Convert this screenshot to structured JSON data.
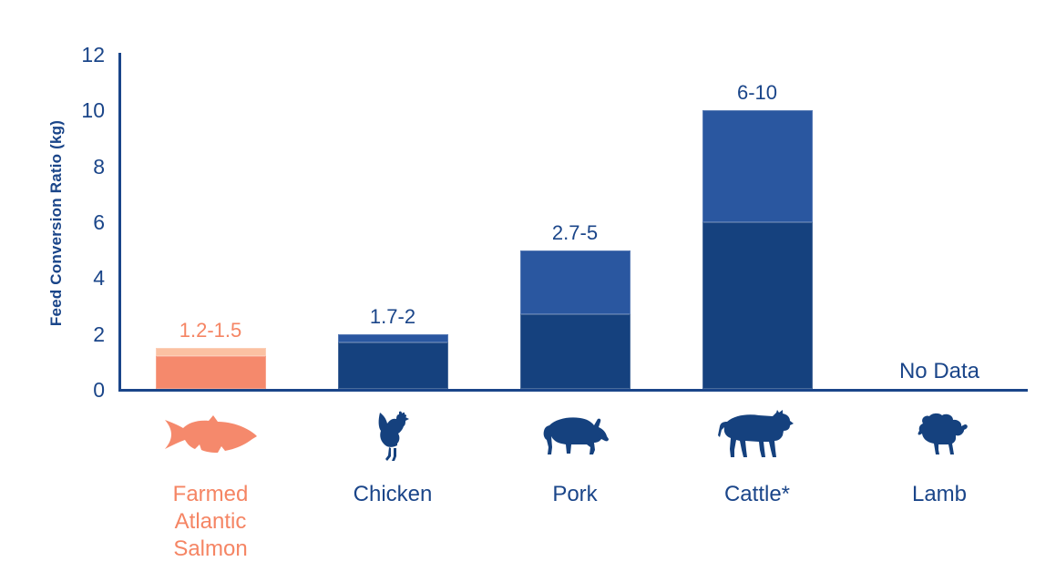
{
  "chart_data": {
    "type": "bar",
    "title": "",
    "ylabel": "Feed Conversion Ratio (kg)",
    "xlabel": "",
    "ylim": [
      0,
      12
    ],
    "yticks": [
      0,
      2,
      4,
      6,
      8,
      10,
      12
    ],
    "grid": false,
    "legend": false,
    "bar_style": "range bars: dark segment from 0 to range_min, light segment from range_min to range_max",
    "categories": [
      {
        "label": "Farmed Atlantic Salmon",
        "label_lines": [
          "Farmed",
          "Atlantic",
          "Salmon"
        ],
        "icon": "salmon-fish-icon",
        "range_min": 1.2,
        "range_max": 1.5,
        "range_label": "1.2-1.5",
        "scheme": "orange",
        "no_data": false
      },
      {
        "label": "Chicken",
        "label_lines": [
          "Chicken"
        ],
        "icon": "rooster-icon",
        "range_min": 1.7,
        "range_max": 2,
        "range_label": "1.7-2",
        "scheme": "blue",
        "no_data": false
      },
      {
        "label": "Pork",
        "label_lines": [
          "Pork"
        ],
        "icon": "pig-icon",
        "range_min": 2.7,
        "range_max": 5,
        "range_label": "2.7-5",
        "scheme": "blue",
        "no_data": false
      },
      {
        "label": "Cattle*",
        "label_lines": [
          "Cattle*"
        ],
        "icon": "cow-icon",
        "range_min": 6,
        "range_max": 10,
        "range_label": "6-10",
        "scheme": "blue",
        "no_data": false
      },
      {
        "label": "Lamb",
        "label_lines": [
          "Lamb"
        ],
        "icon": "sheep-icon",
        "range_min": null,
        "range_max": null,
        "range_label": "No Data",
        "scheme": "blue",
        "no_data": true
      }
    ],
    "colors": {
      "bar_dark_blue": "#15417E",
      "bar_light_blue": "#2A57A0",
      "bar_dark_orange": "#F5896C",
      "bar_light_orange": "#FBC1A2",
      "text_blue": "#1A4589",
      "text_orange": "#F58564",
      "axis_line": "#1A4589"
    }
  }
}
